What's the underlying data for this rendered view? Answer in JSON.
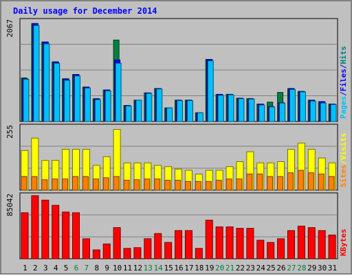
{
  "chart_data": {
    "type": "bar",
    "title": "Daily usage for December 2014",
    "categories": [
      "1",
      "2",
      "3",
      "4",
      "5",
      "6",
      "7",
      "8",
      "9",
      "10",
      "11",
      "12",
      "13",
      "14",
      "15",
      "16",
      "17",
      "18",
      "19",
      "20",
      "21",
      "22",
      "23",
      "24",
      "25",
      "26",
      "27",
      "28",
      "29",
      "30",
      "31"
    ],
    "weekend_days": [
      "6",
      "7",
      "13",
      "14",
      "20",
      "21",
      "27",
      "28"
    ],
    "panels": [
      {
        "id": "hits-files-pages",
        "axis_max_label": "2067",
        "ylim": [
          0,
          2067
        ],
        "right_labels": [
          {
            "text": "Pages",
            "color": "#00c0ff"
          },
          {
            "text": "/",
            "color": "#0000ff"
          },
          {
            "text": "Files",
            "color": "#0000ff"
          },
          {
            "text": "/",
            "color": "#0000ff"
          },
          {
            "text": "Hits",
            "color": "#008080"
          }
        ],
        "series": [
          {
            "name": "Hits",
            "color": "#008040",
            "values": [
              900,
              2020,
              1640,
              1230,
              880,
              970,
              710,
              470,
              650,
              1680,
              330,
              440,
              590,
              680,
              280,
              440,
              440,
              180,
              1280,
              560,
              560,
              480,
              470,
              360,
              400,
              600,
              680,
              620,
              440,
              410,
              360
            ]
          },
          {
            "name": "Files",
            "color": "#0000ff",
            "values": [
              880,
              2020,
              1640,
              1230,
              880,
              970,
              710,
              470,
              650,
              1270,
              330,
              440,
              590,
              680,
              280,
              440,
              440,
              180,
              1280,
              560,
              560,
              480,
              470,
              360,
              310,
              390,
              680,
              620,
              440,
              410,
              360
            ]
          },
          {
            "name": "Pages",
            "color": "#00c0ff",
            "values": [
              870,
              1980,
              1600,
              1200,
              850,
              940,
              690,
              450,
              630,
              1200,
              320,
              440,
              580,
              670,
              280,
              430,
              430,
              180,
              1250,
              540,
              550,
              470,
              460,
              340,
              300,
              380,
              660,
              610,
              420,
              380,
              350
            ]
          }
        ]
      },
      {
        "id": "visits-sites",
        "axis_max_label": "255",
        "ylim": [
          0,
          255
        ],
        "right_labels": [
          {
            "text": "Sites",
            "color": "#ff8000"
          },
          {
            "text": "/",
            "color": "#ffff00"
          },
          {
            "text": "Visits",
            "color": "#ffff00"
          }
        ],
        "series": [
          {
            "name": "Visits",
            "color": "#ffff00",
            "values": [
              160,
              210,
              120,
              120,
              165,
              165,
              165,
              100,
              135,
              245,
              110,
              110,
              110,
              100,
              95,
              85,
              80,
              65,
              80,
              80,
              95,
              115,
              155,
              110,
              110,
              115,
              165,
              190,
              165,
              130,
              110
            ]
          },
          {
            "name": "Sites",
            "color": "#ff8000",
            "values": [
              55,
              55,
              42,
              45,
              45,
              55,
              55,
              45,
              50,
              55,
              40,
              42,
              45,
              45,
              40,
              40,
              35,
              35,
              35,
              40,
              45,
              45,
              65,
              65,
              55,
              55,
              70,
              80,
              70,
              65,
              55
            ]
          }
        ]
      },
      {
        "id": "kbytes",
        "axis_max_label": "85042",
        "ylim": [
          0,
          85042
        ],
        "right_labels": [
          {
            "text": "KBytes",
            "color": "#ff0000"
          }
        ],
        "series": [
          {
            "name": "KBytes",
            "color": "#ff0000",
            "values": [
              62000,
              85000,
              79000,
              72000,
              63000,
              62000,
              27000,
              12000,
              20000,
              42000,
              14000,
              15000,
              27000,
              34000,
              22000,
              38000,
              38000,
              14000,
              52000,
              43000,
              43000,
              41000,
              41000,
              25000,
              22000,
              27000,
              38000,
              44000,
              42000,
              38000,
              32000
            ]
          }
        ]
      }
    ]
  }
}
